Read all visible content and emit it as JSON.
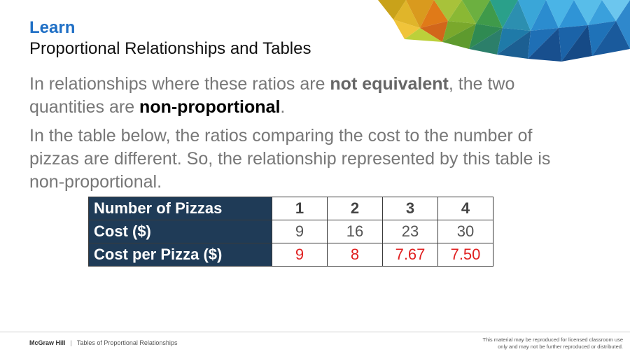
{
  "header": {
    "label": "Learn",
    "title": "Proportional Relationships and Tables"
  },
  "paragraph1": {
    "part1": "In relationships where these ratios are ",
    "bold1": "not equivalent",
    "part2": ", the two quantities are ",
    "bold2": "non-proportional",
    "part3": "."
  },
  "paragraph2": {
    "text": "In the table below, the ratios comparing the cost to the number of pizzas are different. So, the relationship represented by this table is non-proportional."
  },
  "table": {
    "rows": [
      {
        "label": "Number of Pizzas",
        "values": [
          "1",
          "2",
          "3",
          "4"
        ]
      },
      {
        "label": "Cost ($)",
        "values": [
          "9",
          "16",
          "23",
          "30"
        ]
      },
      {
        "label": "Cost per Pizza ($)",
        "values": [
          "9",
          "8",
          "7.67",
          "7.50"
        ]
      }
    ],
    "highlight_color": "#e02020",
    "header_bg": "#1f3b57"
  },
  "footer": {
    "brand": "McGraw Hill",
    "separator": "|",
    "course": "Tables of Proportional Relationships",
    "notice_line1": "This material may be reproduced for licensed classroom use",
    "notice_line2": "only and may not be further reproduced or distributed."
  },
  "colors": {
    "accent": "#1f6fc5"
  }
}
